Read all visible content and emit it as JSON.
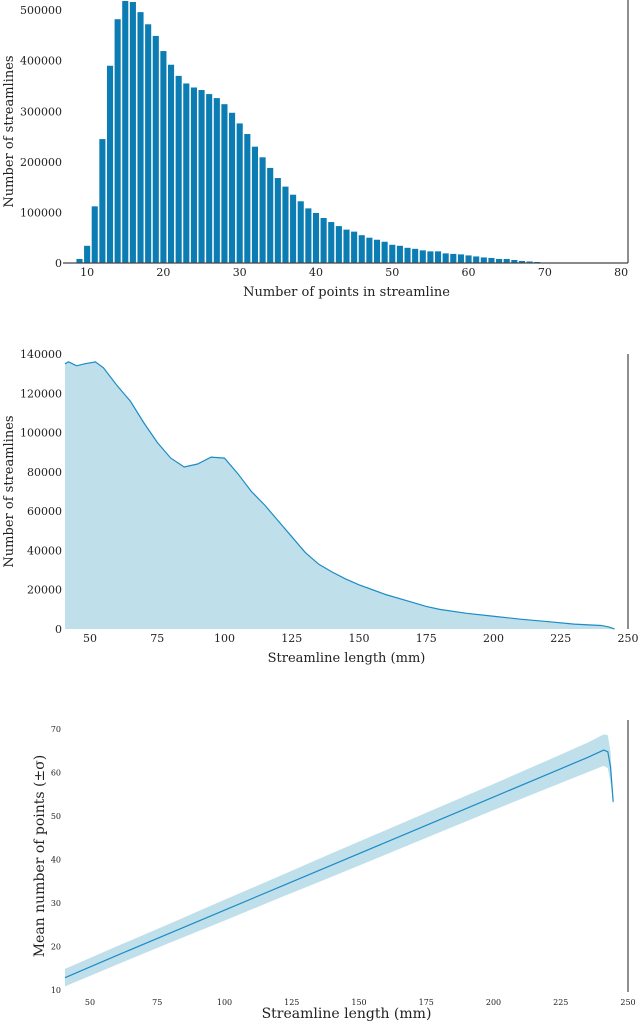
{
  "colors": {
    "bar": "#0b7db3",
    "fill": "#bfdfea",
    "line": "#1c8cc6",
    "spine": "#444444"
  },
  "chart_data": [
    {
      "type": "bar",
      "title": "",
      "xlabel": "Number of points in streamline",
      "ylabel": "Number of streamlines",
      "xlim": [
        7.1,
        80.9
      ],
      "ylim": [
        0,
        520000
      ],
      "xticks": [
        "10",
        "20",
        "30",
        "40",
        "50",
        "60",
        "70",
        "80"
      ],
      "yticks": [
        "0",
        "100000",
        "200000",
        "300000",
        "400000",
        "500000"
      ],
      "x": [
        9,
        10,
        11,
        12,
        13,
        14,
        15,
        16,
        17,
        18,
        19,
        20,
        21,
        22,
        23,
        24,
        25,
        26,
        27,
        28,
        29,
        30,
        31,
        32,
        33,
        34,
        35,
        36,
        37,
        38,
        39,
        40,
        41,
        42,
        43,
        44,
        45,
        46,
        47,
        48,
        49,
        50,
        51,
        52,
        53,
        54,
        55,
        56,
        57,
        58,
        59,
        60,
        61,
        62,
        63,
        64,
        65,
        66,
        67,
        68,
        69
      ],
      "values": [
        8000,
        34000,
        112000,
        245000,
        390000,
        482000,
        518000,
        516000,
        496000,
        472000,
        449000,
        419000,
        392000,
        370000,
        355000,
        347000,
        342000,
        334000,
        326000,
        314000,
        297000,
        276000,
        255000,
        230000,
        209000,
        188000,
        168000,
        151000,
        135000,
        122000,
        108000,
        99000,
        89000,
        81000,
        73000,
        66000,
        62000,
        55000,
        50000,
        46000,
        42000,
        36000,
        34000,
        30000,
        28000,
        25000,
        23000,
        23000,
        19000,
        18000,
        17000,
        15000,
        13000,
        11000,
        10000,
        8000,
        8000,
        6000,
        4000,
        3000,
        2000
      ],
      "grid": false
    },
    {
      "type": "area",
      "title": "",
      "xlabel": "Streamline length (mm)",
      "ylabel": "Number of streamlines",
      "xlim": [
        40.7,
        250
      ],
      "ylim": [
        0,
        140000
      ],
      "xticks": [
        "50",
        "75",
        "100",
        "125",
        "150",
        "175",
        "200",
        "225",
        "250"
      ],
      "yticks": [
        "0",
        "20000",
        "40000",
        "60000",
        "80000",
        "100000",
        "120000",
        "140000"
      ],
      "x": [
        40.7,
        42,
        45,
        48,
        52,
        55,
        60,
        65,
        70,
        75,
        80,
        85,
        90,
        95,
        100,
        105,
        110,
        115,
        120,
        125,
        130,
        135,
        140,
        145,
        150,
        160,
        170,
        175,
        180,
        190,
        200,
        210,
        220,
        230,
        240,
        243,
        245
      ],
      "values": [
        135000,
        136000,
        134000,
        135000,
        136000,
        133000,
        124000,
        116000,
        105000,
        95000,
        87000,
        82500,
        84000,
        87500,
        87000,
        79000,
        70000,
        63000,
        55000,
        47000,
        39000,
        33000,
        29000,
        25500,
        22500,
        17500,
        13500,
        11500,
        10000,
        8000,
        6500,
        5000,
        3800,
        2500,
        1800,
        1000,
        0
      ],
      "grid": false
    },
    {
      "type": "line",
      "title": "",
      "xlabel": "Streamline length (mm)",
      "ylabel": "Mean number of points (±σ)",
      "xlim": [
        40.7,
        250
      ],
      "ylim": [
        9.3,
        71.8
      ],
      "xticks": [
        "50",
        "75",
        "100",
        "125",
        "150",
        "175",
        "200",
        "225",
        "250"
      ],
      "yticks": [
        "10",
        "20",
        "30",
        "40",
        "50",
        "60",
        "70"
      ],
      "x": [
        40.7,
        60,
        80,
        100,
        120,
        140,
        160,
        180,
        200,
        220,
        235,
        241,
        242.5,
        243.5,
        244.5
      ],
      "mean": [
        12.6,
        17.7,
        22.9,
        28.1,
        33.3,
        38.5,
        43.7,
        48.9,
        54.1,
        59.3,
        63.2,
        64.9,
        64.5,
        61,
        53
      ],
      "std": [
        2.0,
        2.1,
        2.2,
        2.4,
        2.5,
        2.7,
        2.8,
        2.9,
        3.0,
        3.2,
        3.4,
        3.6,
        3.8,
        3.5,
        1
      ],
      "grid": false
    }
  ]
}
